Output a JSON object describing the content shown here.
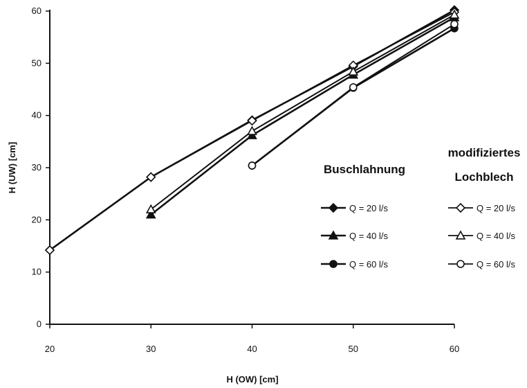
{
  "chart_data": {
    "type": "line",
    "xlabel": "H (OW) [cm]",
    "ylabel": "H (UW) [cm]",
    "xlim": [
      20,
      60
    ],
    "ylim": [
      0,
      60
    ],
    "xticks": [
      20,
      30,
      40,
      50,
      60
    ],
    "yticks": [
      0,
      10,
      20,
      30,
      40,
      50,
      60
    ],
    "grid": false,
    "legend_groups": [
      {
        "title_lines": [
          "Buschlahnung"
        ],
        "placement": "right-middle"
      },
      {
        "title_lines": [
          "modifiziertes",
          "Lochblech"
        ],
        "placement": "right-top"
      }
    ],
    "series": [
      {
        "name": "Q = 20 l/s",
        "group": 0,
        "marker": "diamond",
        "fill": "solid",
        "x": [
          20,
          30,
          40,
          50,
          60
        ],
        "y": [
          14.2,
          28.2,
          39.1,
          49.4,
          60.2
        ]
      },
      {
        "name": "Q = 40 l/s",
        "group": 0,
        "marker": "triangle",
        "fill": "solid",
        "x": [
          30,
          40,
          50,
          60
        ],
        "y": [
          21.0,
          36.2,
          47.8,
          58.8
        ]
      },
      {
        "name": "Q = 60 l/s",
        "group": 0,
        "marker": "circle",
        "fill": "solid",
        "x": [
          40,
          50,
          60
        ],
        "y": [
          30.4,
          45.3,
          56.7
        ]
      },
      {
        "name": "Q = 20 l/s",
        "group": 1,
        "marker": "diamond",
        "fill": "open",
        "x": [
          20,
          30,
          40,
          50,
          60
        ],
        "y": [
          14.2,
          28.2,
          39.0,
          49.6,
          59.8
        ]
      },
      {
        "name": "Q = 40 l/s",
        "group": 1,
        "marker": "triangle",
        "fill": "open",
        "x": [
          30,
          40,
          50,
          60
        ],
        "y": [
          22.0,
          37.0,
          48.4,
          59.3
        ]
      },
      {
        "name": "Q = 60 l/s",
        "group": 1,
        "marker": "circle",
        "fill": "open",
        "x": [
          40,
          50,
          60
        ],
        "y": [
          30.4,
          45.4,
          57.5
        ]
      }
    ]
  }
}
